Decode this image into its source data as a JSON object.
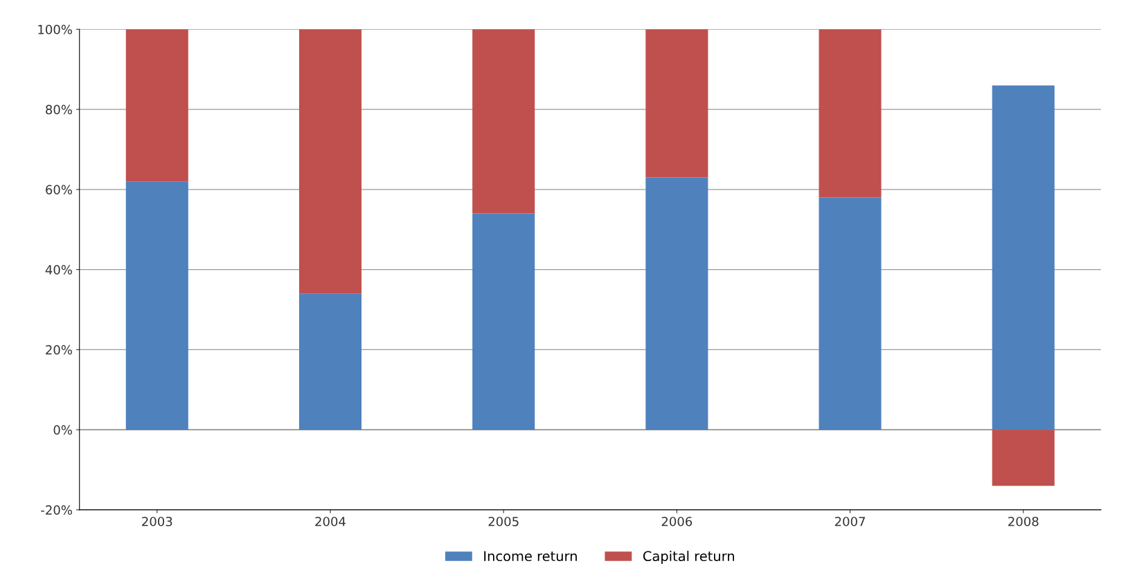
{
  "chart_data": {
    "type": "bar",
    "stacked": true,
    "categories": [
      "2003",
      "2004",
      "2005",
      "2006",
      "2007",
      "2008"
    ],
    "series": [
      {
        "name": "Income return",
        "color": "#4f81bd",
        "values": [
          62,
          34,
          54,
          63,
          58,
          86
        ]
      },
      {
        "name": "Capital return",
        "color": "#c0504d",
        "values": [
          38,
          66,
          46,
          37,
          42,
          -14
        ]
      }
    ],
    "ylim": [
      -20,
      100
    ],
    "yticks": [
      {
        "value": -20,
        "label": "-20%"
      },
      {
        "value": 0,
        "label": "0%"
      },
      {
        "value": 20,
        "label": "20%"
      },
      {
        "value": 40,
        "label": "40%"
      },
      {
        "value": 60,
        "label": "60%"
      },
      {
        "value": 80,
        "label": "80%"
      },
      {
        "value": 100,
        "label": "100%"
      }
    ],
    "grid": "y",
    "legend": "bottom"
  }
}
